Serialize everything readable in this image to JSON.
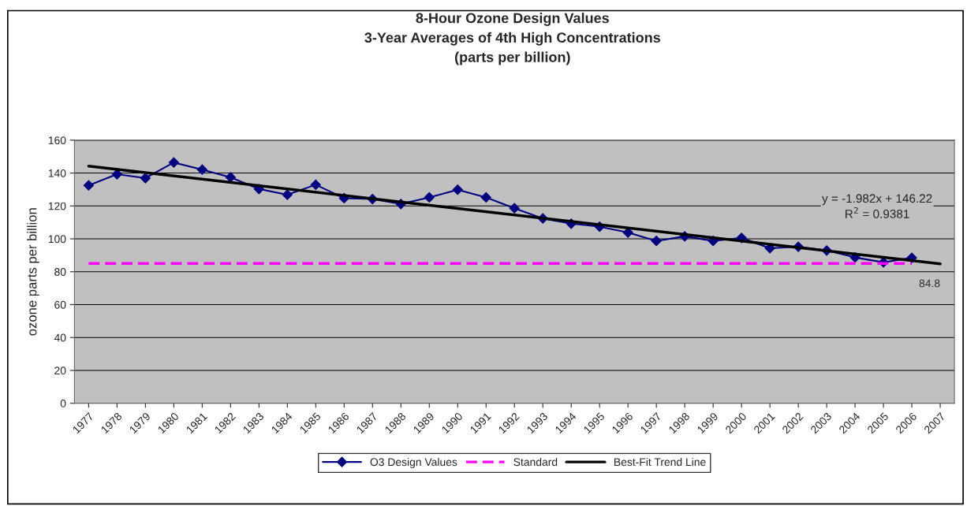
{
  "chart_data": {
    "type": "line",
    "title": "8-Hour Ozone Design Values\n3-Year Averages of 4th High Concentrations\n(parts per billion)",
    "ylabel": "ozone parts per billion",
    "categories": [
      "1977",
      "1978",
      "1979",
      "1980",
      "1981",
      "1982",
      "1983",
      "1984",
      "1985",
      "1986",
      "1987",
      "1988",
      "1989",
      "1990",
      "1991",
      "1992",
      "1993",
      "1994",
      "1995",
      "1996",
      "1997",
      "1998",
      "1999",
      "2000",
      "2001",
      "2002",
      "2003",
      "2004",
      "2005",
      "2006",
      "2007"
    ],
    "series": [
      {
        "name": "O3 Design Values",
        "color": "#000080",
        "marker": "diamond",
        "line_style": "solid",
        "values": [
          132.5,
          139.3,
          136.9,
          146.4,
          142.1,
          137.4,
          130.3,
          126.8,
          132.9,
          124.7,
          124.2,
          121.2,
          125.2,
          129.9,
          125.2,
          118.6,
          112.4,
          109.2,
          107.4,
          103.8,
          98.7,
          101.5,
          98.7,
          100.6,
          94.3,
          95.2,
          92.9,
          88.7,
          85.7,
          88.5,
          null
        ]
      },
      {
        "name": "Standard",
        "color": "#ff00ff",
        "marker": "none",
        "line_style": "dashed",
        "values": [
          85,
          85,
          85,
          85,
          85,
          85,
          85,
          85,
          85,
          85,
          85,
          85,
          85,
          85,
          85,
          85,
          85,
          85,
          85,
          85,
          85,
          85,
          85,
          85,
          85,
          85,
          85,
          85,
          85,
          85,
          null
        ]
      },
      {
        "name": "Best-Fit Trend Line",
        "color": "#000000",
        "marker": "none",
        "line_style": "solid",
        "values": [
          144.2,
          null,
          null,
          null,
          null,
          null,
          null,
          null,
          null,
          null,
          null,
          null,
          null,
          null,
          null,
          null,
          null,
          null,
          null,
          null,
          null,
          null,
          null,
          null,
          null,
          null,
          null,
          null,
          null,
          null,
          84.8
        ]
      }
    ],
    "ylim": [
      0,
      160
    ],
    "yticks": [
      0,
      20,
      40,
      60,
      80,
      100,
      120,
      140,
      160
    ],
    "grid": "y",
    "legend": "bottom",
    "annotations": [
      {
        "text": "y = -1.982x + 146.22\nR$^{2}$ = 0.9381"
      },
      {
        "text": "84.8",
        "x": "2007",
        "y": 84.8
      }
    ]
  }
}
